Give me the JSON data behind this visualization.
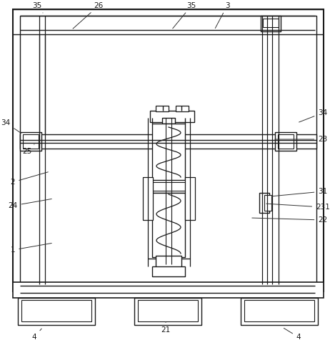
{
  "bg_color": "#ffffff",
  "line_color": "#1a1a1a",
  "line_width": 1.0,
  "annotation_color": "#333333",
  "annotation_fontsize": 7.5,
  "fig_width": 4.69,
  "fig_height": 4.9,
  "dpi": 100
}
